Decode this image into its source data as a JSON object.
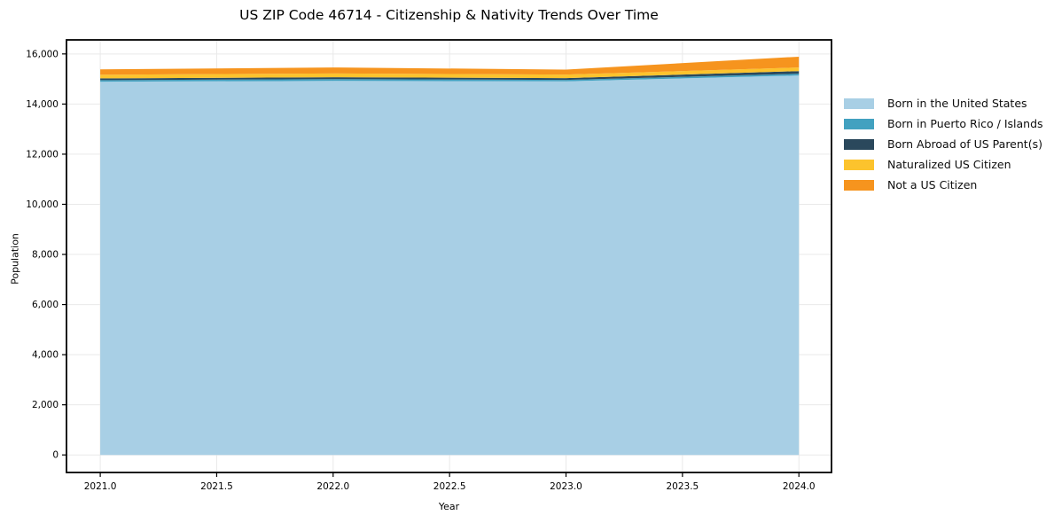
{
  "chart_data": {
    "type": "area",
    "stacked": true,
    "title": "US ZIP Code 46714 - Citizenship & Nativity Trends Over Time",
    "xlabel": "Year",
    "ylabel": "Population",
    "x": [
      2021,
      2022,
      2023,
      2024
    ],
    "series": [
      {
        "name": "Born in the United States",
        "color": "#A8CFE5",
        "values": [
          14890,
          14925,
          14905,
          15140
        ]
      },
      {
        "name": "Born in Puerto Rico / Islands",
        "color": "#42A1C0",
        "values": [
          65,
          70,
          60,
          70
        ]
      },
      {
        "name": "Born Abroad of US Parent(s)",
        "color": "#2A485C",
        "values": [
          70,
          75,
          70,
          105
        ]
      },
      {
        "name": "Naturalized US Citizen",
        "color": "#FCC32D",
        "values": [
          145,
          150,
          140,
          145
        ]
      },
      {
        "name": "Not a US Citizen",
        "color": "#F6941E",
        "values": [
          215,
          240,
          200,
          430
        ]
      }
    ],
    "xticks": [
      2021.0,
      2021.5,
      2022.0,
      2022.5,
      2023.0,
      2023.5,
      2024.0
    ],
    "yticks": [
      0,
      2000,
      4000,
      6000,
      8000,
      10000,
      12000,
      14000,
      16000
    ],
    "xlim": [
      2020.855,
      2024.14
    ],
    "ylim": [
      -700,
      16560
    ],
    "grid": true,
    "legend_position": "outside-right",
    "axis_color": "#000000",
    "grid_color": "#e9e9e9"
  }
}
